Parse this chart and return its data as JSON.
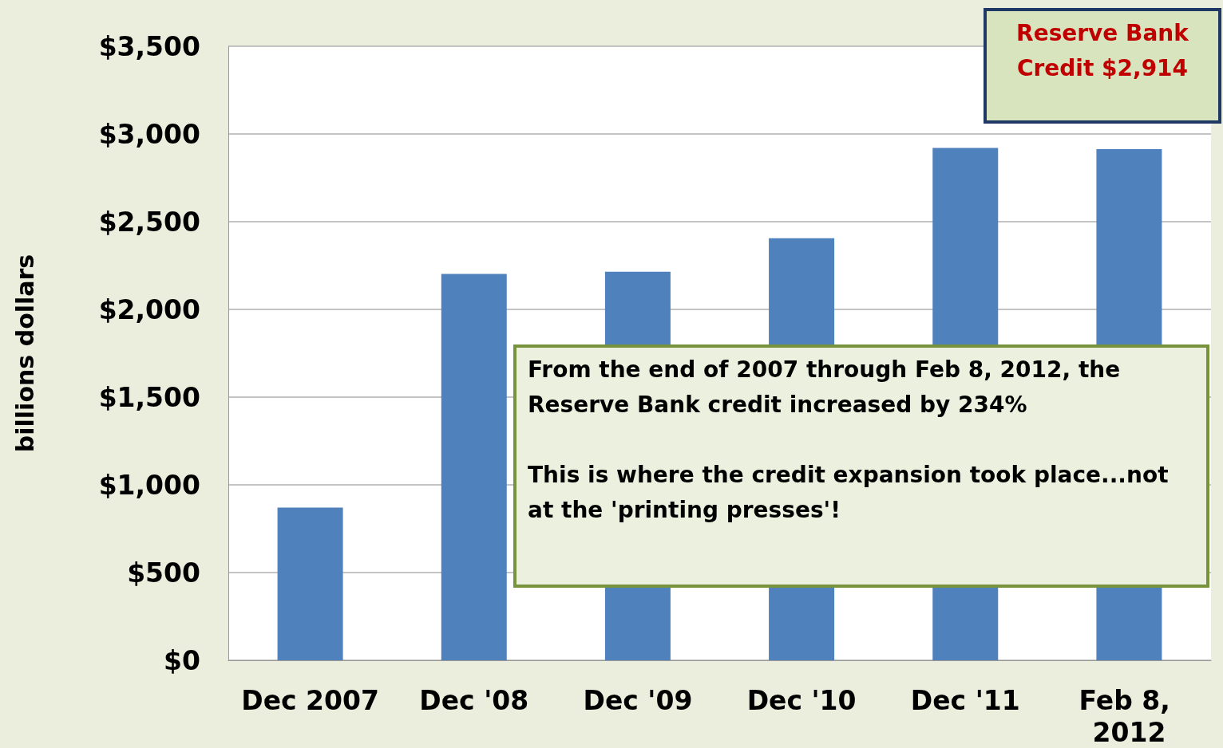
{
  "chart_data": {
    "type": "bar",
    "ylabel": "billions dollars",
    "categories": [
      "Dec 2007",
      "Dec '08",
      "Dec '09",
      "Dec '10",
      "Dec '11",
      "Feb 8, 2012"
    ],
    "values": [
      871,
      2202,
      2215,
      2406,
      2920,
      2914
    ],
    "color": "#4f81bd",
    "ylim": [
      0,
      3500
    ],
    "yticks": [
      {
        "value": 0,
        "label": "$0"
      },
      {
        "value": 500,
        "label": "$500"
      },
      {
        "value": 1000,
        "label": "$1,000"
      },
      {
        "value": 1500,
        "label": "$1,500"
      },
      {
        "value": 2000,
        "label": "$2,000"
      },
      {
        "value": 2500,
        "label": "$2,500"
      },
      {
        "value": 3000,
        "label": "$3,000"
      },
      {
        "value": 3500,
        "label": "$3,500"
      }
    ],
    "grid": "y",
    "annotations": [
      "Reserve Bank Credit $2,914",
      "From the end of 2007 through Feb 8, 2012, the Reserve Bank credit increased by 234%\n\nThis is where the credit expansion took place...not at the 'printing presses'!"
    ]
  }
}
